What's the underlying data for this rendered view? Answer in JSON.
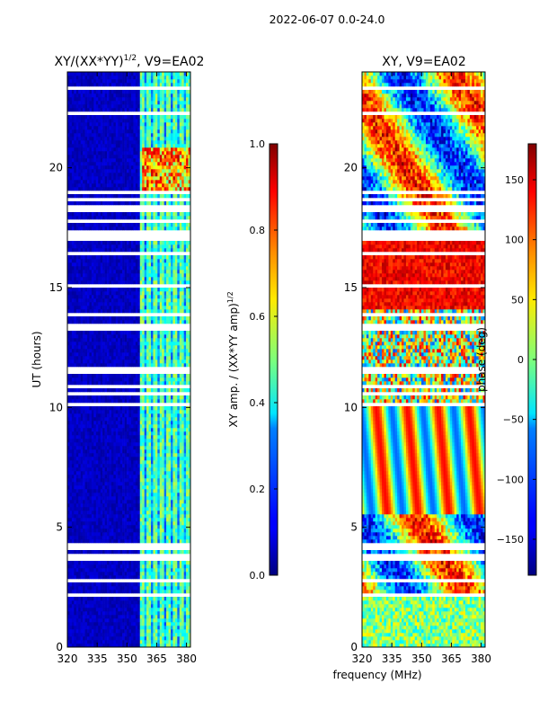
{
  "suptitle": "2022-06-07 0.0-24.0",
  "shared_xlabel": "frequency (MHz)",
  "chart_data": [
    {
      "type": "heatmap",
      "title_main": "XY/(XX*YY)",
      "title_sup": "1/2",
      "title_tail": ", V9=EA02",
      "ylabel": "UT (hours)",
      "x_ticks": [
        "320",
        "335",
        "350",
        "365",
        "380"
      ],
      "x_tick_values": [
        320,
        335,
        350,
        365,
        380
      ],
      "xlim": [
        320,
        382
      ],
      "y_ticks": [
        "0",
        "5",
        "10",
        "15",
        "20"
      ],
      "y_tick_values": [
        0,
        5,
        10,
        15,
        20
      ],
      "ylim": [
        0,
        24
      ],
      "colorbar": {
        "label_main": "XY amp. / (XX*YY amp)",
        "label_sup": "1/2",
        "ticks": [
          "0.0",
          "0.2",
          "0.4",
          "0.6",
          "0.8",
          "1.0"
        ],
        "tick_values": [
          0.0,
          0.2,
          0.4,
          0.6,
          0.8,
          1.0
        ],
        "range": [
          0,
          1
        ]
      },
      "colormap": "jet"
    },
    {
      "type": "heatmap",
      "title_main": "XY, V9=EA02",
      "ylabel": "",
      "x_ticks": [
        "320",
        "335",
        "350",
        "365",
        "380"
      ],
      "x_tick_values": [
        320,
        335,
        350,
        365,
        380
      ],
      "xlim": [
        320,
        382
      ],
      "y_ticks": [
        "0",
        "5",
        "10",
        "15",
        "20"
      ],
      "y_tick_values": [
        0,
        5,
        10,
        15,
        20
      ],
      "ylim": [
        0,
        24
      ],
      "colorbar": {
        "label_main": "phase (deg)",
        "ticks": [
          "−150",
          "−100",
          "−50",
          "0",
          "50",
          "100",
          "150"
        ],
        "tick_values": [
          -150,
          -100,
          -50,
          0,
          50,
          100,
          150
        ],
        "range": [
          -180,
          180
        ]
      },
      "colormap": "jet"
    }
  ]
}
